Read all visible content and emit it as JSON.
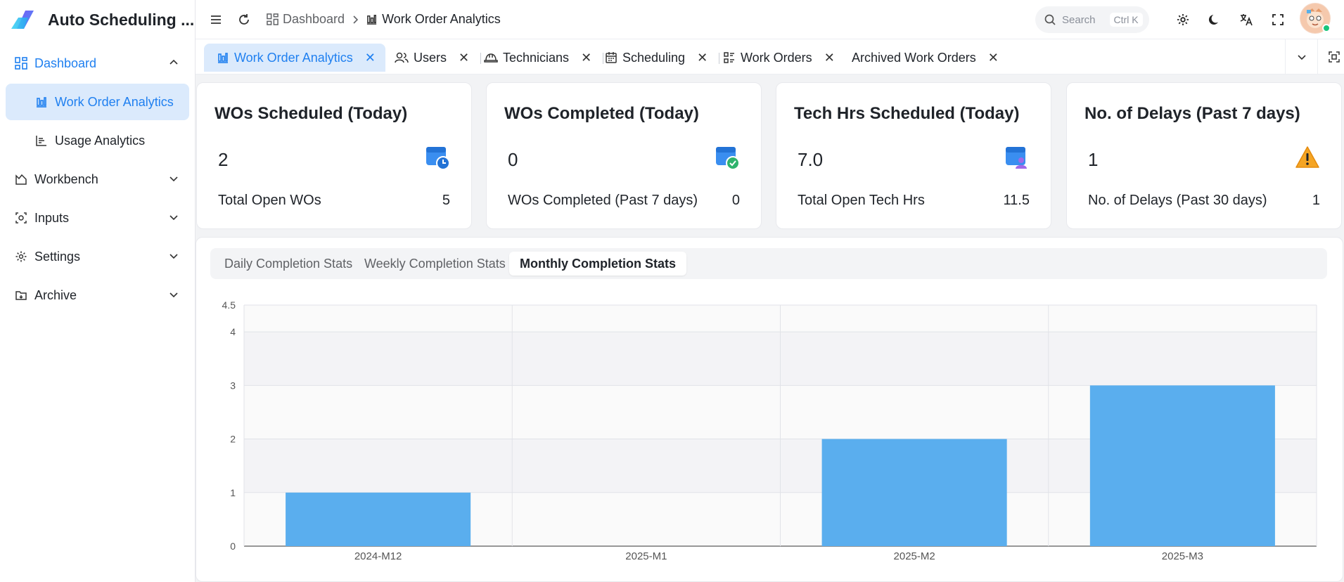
{
  "app": {
    "name": "Auto Scheduling ..."
  },
  "sidebar": {
    "items": [
      {
        "label": "Dashboard",
        "icon": "dashboard-icon"
      },
      {
        "label": "Work Order Analytics",
        "icon": "bar-chart-icon"
      },
      {
        "label": "Usage Analytics",
        "icon": "line-chart-icon"
      },
      {
        "label": "Workbench",
        "icon": "workbench-icon"
      },
      {
        "label": "Inputs",
        "icon": "inputs-icon"
      },
      {
        "label": "Settings",
        "icon": "gear-icon"
      },
      {
        "label": "Archive",
        "icon": "archive-icon"
      }
    ]
  },
  "header": {
    "breadcrumb": [
      "Dashboard",
      "Work Order Analytics"
    ],
    "search_placeholder": "Search",
    "search_shortcut": "Ctrl K"
  },
  "tabs": [
    {
      "label": "Work Order Analytics",
      "icon": "bar-chart-icon"
    },
    {
      "label": "Users",
      "icon": "users-icon"
    },
    {
      "label": "Technicians",
      "icon": "hard-hat-icon"
    },
    {
      "label": "Scheduling",
      "icon": "calendar-icon"
    },
    {
      "label": "Work Orders",
      "icon": "list-icon"
    },
    {
      "label": "Archived Work Orders",
      "icon": ""
    }
  ],
  "cards": [
    {
      "title": "WOs Scheduled (Today)",
      "value": "2",
      "foot_label": "Total Open WOs",
      "foot_value": "5",
      "icon": "calendar-clock-icon"
    },
    {
      "title": "WOs Completed (Today)",
      "value": "0",
      "foot_label": "WOs Completed (Past 7 days)",
      "foot_value": "0",
      "icon": "calendar-check-icon"
    },
    {
      "title": "Tech Hrs Scheduled (Today)",
      "value": "7.0",
      "foot_label": "Total Open Tech Hrs",
      "foot_value": "11.5",
      "icon": "calendar-users-icon"
    },
    {
      "title": "No. of Delays (Past 7 days)",
      "value": "1",
      "foot_label": "No. of Delays (Past 30 days)",
      "foot_value": "1",
      "icon": "warning-icon"
    }
  ],
  "stats_tabs": [
    "Daily Completion Stats",
    "Weekly Completion Stats",
    "Monthly Completion Stats"
  ],
  "colors": {
    "accent": "#2080f0",
    "bar": "#5aaeee",
    "active_bg": "#dbeafc"
  },
  "chart_data": {
    "type": "bar",
    "title": "",
    "categories": [
      "2024-M12",
      "2025-M1",
      "2025-M2",
      "2025-M3"
    ],
    "values": [
      1,
      0,
      2,
      3
    ],
    "yticks": [
      "0",
      "1",
      "2",
      "3",
      "4",
      "4.5"
    ],
    "ylim": [
      0,
      4.5
    ],
    "xlabel": "",
    "ylabel": ""
  }
}
